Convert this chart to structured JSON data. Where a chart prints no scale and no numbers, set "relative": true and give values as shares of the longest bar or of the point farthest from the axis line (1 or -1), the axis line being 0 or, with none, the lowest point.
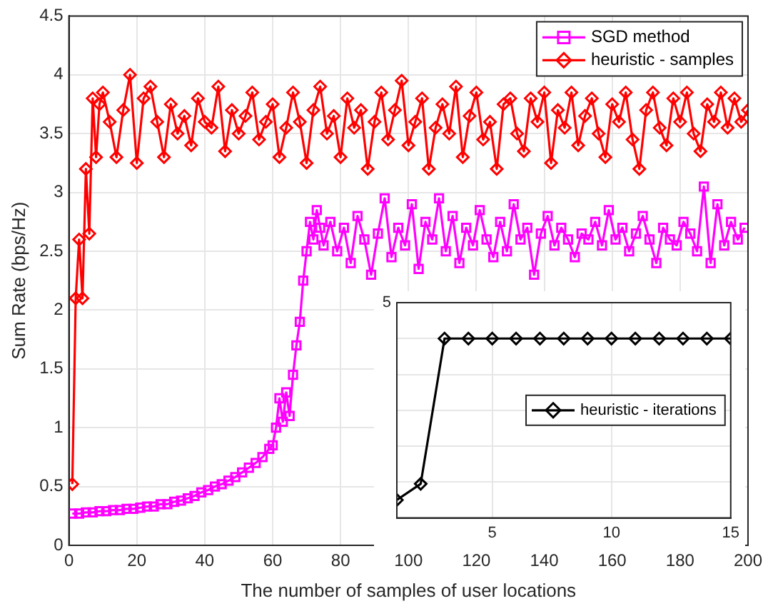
{
  "chart_data": [
    {
      "type": "line",
      "xlabel": "The number of samples of user locations",
      "ylabel": "Sum Rate (bps/Hz)",
      "xlim": [
        0,
        200
      ],
      "xticks": [
        0,
        20,
        40,
        60,
        80,
        100,
        120,
        140,
        160,
        180,
        200
      ],
      "ylim": [
        0,
        4.5
      ],
      "yticks": [
        0,
        0.5,
        1,
        1.5,
        2,
        2.5,
        3,
        3.5,
        4,
        4.5
      ],
      "grid": true,
      "legend": "top right",
      "line_style": "solid",
      "series": [
        {
          "name": "SGD method",
          "color": "#ff00ff",
          "marker": "square",
          "x": [
            1,
            3,
            5,
            7,
            9,
            11,
            13,
            15,
            17,
            19,
            21,
            23,
            25,
            27,
            29,
            31,
            33,
            35,
            37,
            39,
            41,
            43,
            45,
            47,
            49,
            51,
            53,
            55,
            57,
            59,
            60,
            61,
            62,
            63,
            64,
            65,
            66,
            67,
            68,
            69,
            70,
            71,
            72,
            73,
            74,
            75,
            77,
            79,
            81,
            83,
            85,
            87,
            89,
            91,
            93,
            95,
            97,
            99,
            101,
            103,
            105,
            107,
            109,
            111,
            113,
            115,
            117,
            119,
            121,
            123,
            125,
            127,
            129,
            131,
            133,
            135,
            137,
            139,
            141,
            143,
            145,
            147,
            149,
            151,
            153,
            155,
            157,
            159,
            161,
            163,
            165,
            167,
            169,
            171,
            173,
            175,
            177,
            179,
            181,
            183,
            185,
            187,
            189,
            191,
            193,
            195,
            197,
            199
          ],
          "values": [
            0.27,
            0.27,
            0.28,
            0.28,
            0.29,
            0.29,
            0.3,
            0.3,
            0.31,
            0.31,
            0.32,
            0.33,
            0.33,
            0.35,
            0.35,
            0.37,
            0.38,
            0.4,
            0.42,
            0.45,
            0.47,
            0.5,
            0.52,
            0.55,
            0.58,
            0.62,
            0.66,
            0.7,
            0.75,
            0.82,
            0.85,
            1.0,
            1.25,
            1.05,
            1.3,
            1.1,
            1.45,
            1.7,
            1.9,
            2.25,
            2.5,
            2.75,
            2.6,
            2.85,
            2.7,
            2.55,
            2.75,
            2.5,
            2.7,
            2.4,
            2.8,
            2.6,
            2.3,
            2.65,
            2.95,
            2.45,
            2.7,
            2.55,
            2.9,
            2.35,
            2.75,
            2.6,
            2.95,
            2.5,
            2.8,
            2.4,
            2.7,
            2.55,
            2.85,
            2.6,
            2.45,
            2.75,
            2.5,
            2.9,
            2.6,
            2.7,
            2.3,
            2.65,
            2.8,
            2.55,
            2.7,
            2.6,
            2.45,
            2.65,
            2.6,
            2.75,
            2.55,
            2.85,
            2.6,
            2.7,
            2.5,
            2.65,
            2.8,
            2.6,
            2.4,
            2.7,
            2.6,
            2.55,
            2.75,
            2.65,
            2.5,
            3.05,
            2.4,
            2.9,
            2.55,
            2.75,
            2.6,
            2.7
          ]
        },
        {
          "name": "heuristic - samples",
          "color": "#ff0000",
          "marker": "diamond",
          "x": [
            1,
            2,
            3,
            4,
            5,
            6,
            7,
            8,
            9,
            10,
            12,
            14,
            16,
            18,
            20,
            22,
            24,
            26,
            28,
            30,
            32,
            34,
            36,
            38,
            40,
            42,
            44,
            46,
            48,
            50,
            52,
            54,
            56,
            58,
            60,
            62,
            64,
            66,
            68,
            70,
            72,
            74,
            76,
            78,
            80,
            82,
            84,
            86,
            88,
            90,
            92,
            94,
            96,
            98,
            100,
            102,
            104,
            106,
            108,
            110,
            112,
            114,
            116,
            118,
            120,
            122,
            124,
            126,
            128,
            130,
            132,
            134,
            136,
            138,
            140,
            142,
            144,
            146,
            148,
            150,
            152,
            154,
            156,
            158,
            160,
            162,
            164,
            166,
            168,
            170,
            172,
            174,
            176,
            178,
            180,
            182,
            184,
            186,
            188,
            190,
            192,
            194,
            196,
            198,
            200
          ],
          "values": [
            0.52,
            2.1,
            2.6,
            2.1,
            3.2,
            2.65,
            3.8,
            3.3,
            3.75,
            3.85,
            3.6,
            3.3,
            3.7,
            4.0,
            3.25,
            3.8,
            3.9,
            3.6,
            3.3,
            3.75,
            3.5,
            3.65,
            3.4,
            3.8,
            3.6,
            3.55,
            3.9,
            3.35,
            3.7,
            3.5,
            3.65,
            3.85,
            3.45,
            3.6,
            3.75,
            3.3,
            3.55,
            3.85,
            3.6,
            3.25,
            3.7,
            3.9,
            3.5,
            3.65,
            3.3,
            3.8,
            3.55,
            3.7,
            3.2,
            3.6,
            3.85,
            3.45,
            3.7,
            3.95,
            3.4,
            3.6,
            3.8,
            3.2,
            3.55,
            3.75,
            3.5,
            3.9,
            3.3,
            3.65,
            3.85,
            3.45,
            3.6,
            3.2,
            3.75,
            3.8,
            3.5,
            3.35,
            3.8,
            3.6,
            3.85,
            3.25,
            3.7,
            3.55,
            3.85,
            3.4,
            3.65,
            3.8,
            3.5,
            3.3,
            3.75,
            3.6,
            3.85,
            3.45,
            3.2,
            3.7,
            3.85,
            3.55,
            3.4,
            3.8,
            3.6,
            3.85,
            3.5,
            3.35,
            3.75,
            3.6,
            3.85,
            3.55,
            3.8,
            3.6,
            3.7
          ]
        }
      ]
    },
    {
      "type": "line",
      "relative": true,
      "xlim": [
        1,
        15
      ],
      "xticks": [
        5,
        10,
        15
      ],
      "grid": true,
      "legend": "right",
      "line_style": "solid",
      "annotations": [
        "5"
      ],
      "series": [
        {
          "name": "heuristic - iterations",
          "color": "#000000",
          "marker": "diamond",
          "x": [
            1,
            2,
            3,
            4,
            5,
            6,
            7,
            8,
            9,
            10,
            11,
            12,
            13,
            14,
            15
          ],
          "values": [
            0.1,
            0.19,
            1,
            1,
            1,
            1,
            1,
            1,
            1,
            1,
            1,
            1,
            1,
            1,
            1
          ]
        }
      ]
    }
  ]
}
